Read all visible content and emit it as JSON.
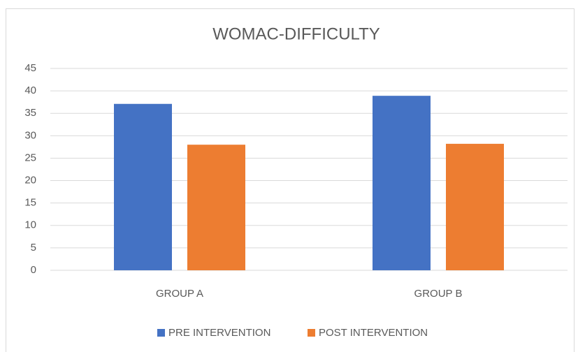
{
  "chart_data": {
    "type": "bar",
    "title": "WOMAC-DIFFICULTY",
    "categories": [
      "GROUP A",
      "GROUP B"
    ],
    "series": [
      {
        "name": "PRE INTERVENTION",
        "color": "#4472c4",
        "values": [
          37.1,
          38.9
        ]
      },
      {
        "name": "POST INTERVENTION",
        "color": "#ed7d31",
        "values": [
          28.0,
          28.2
        ]
      }
    ],
    "ylim": [
      0,
      45
    ],
    "yticks": [
      0,
      5,
      10,
      15,
      20,
      25,
      30,
      35,
      40,
      45
    ],
    "grid": true,
    "legend": "bottom"
  }
}
